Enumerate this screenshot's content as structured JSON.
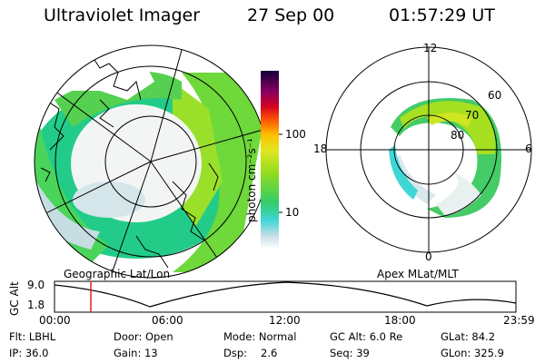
{
  "header": {
    "instrument": "Ultraviolet Imager",
    "date": "27 Sep 00",
    "time": "01:57:29 UT"
  },
  "left_panel": {
    "caption": "Geographic Lat/Lon"
  },
  "right_panel": {
    "caption": "Apex MLat/MLT",
    "mlt_labels": [
      "12",
      "18",
      "6",
      "0"
    ],
    "mlat_labels": [
      "60",
      "70",
      "80"
    ]
  },
  "colorbar": {
    "unit_label": "photon cm⁻²s⁻¹",
    "ticks": [
      "100",
      "10"
    ]
  },
  "altitude_plot": {
    "ylabel": "GC Alt",
    "yticks": [
      "9.0",
      "1.8"
    ],
    "xticks": [
      "00:00",
      "06:00",
      "12:00",
      "18:00",
      "23:59"
    ],
    "current_time_marker_color": "#e02020"
  },
  "status": {
    "filter": "Flt: LBHL",
    "door": "Door: Open",
    "mode": "Mode: Normal",
    "gc_alt": "GC Alt: 6.0 Re",
    "glat": "GLat:  84.2",
    "ip": "IP: 36.0",
    "gain": "Gain: 13",
    "dsp_label": "Dsp:",
    "dsp_value": "2.6",
    "seq": "Seq: 39",
    "glon": "GLon: 325.9"
  }
}
